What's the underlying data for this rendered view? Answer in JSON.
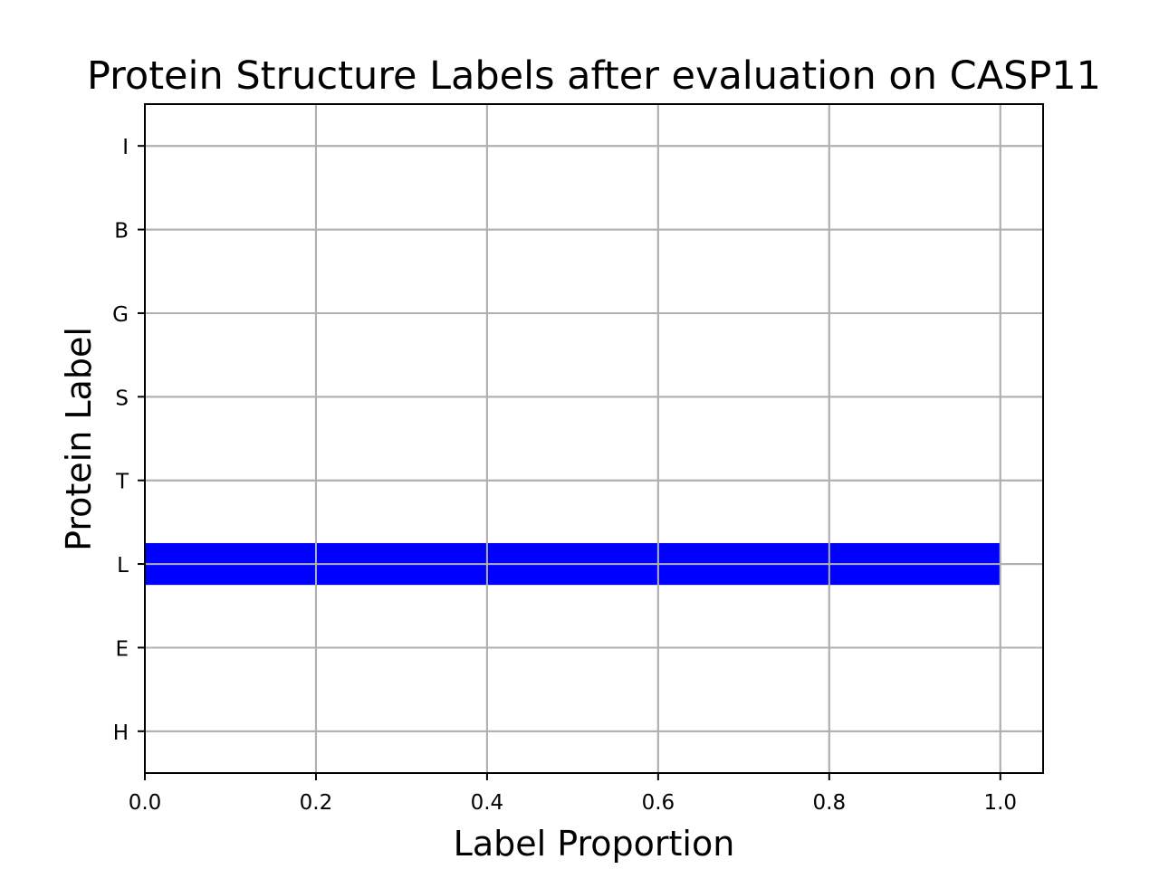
{
  "chart_data": {
    "type": "bar",
    "orientation": "horizontal",
    "title": "Protein Structure Labels after evaluation on CASP11",
    "xlabel": "Label Proportion",
    "ylabel": "Protein Label",
    "categories": [
      "H",
      "E",
      "L",
      "T",
      "S",
      "G",
      "B",
      "I"
    ],
    "values": [
      0.0,
      0.0,
      1.0,
      0.0,
      0.0,
      0.0,
      0.0,
      0.0
    ],
    "xlim": [
      0.0,
      1.05
    ],
    "xticks": [
      "0.0",
      "0.2",
      "0.4",
      "0.6",
      "0.8",
      "1.0"
    ],
    "grid": true,
    "bar_color": "#0000ff"
  }
}
